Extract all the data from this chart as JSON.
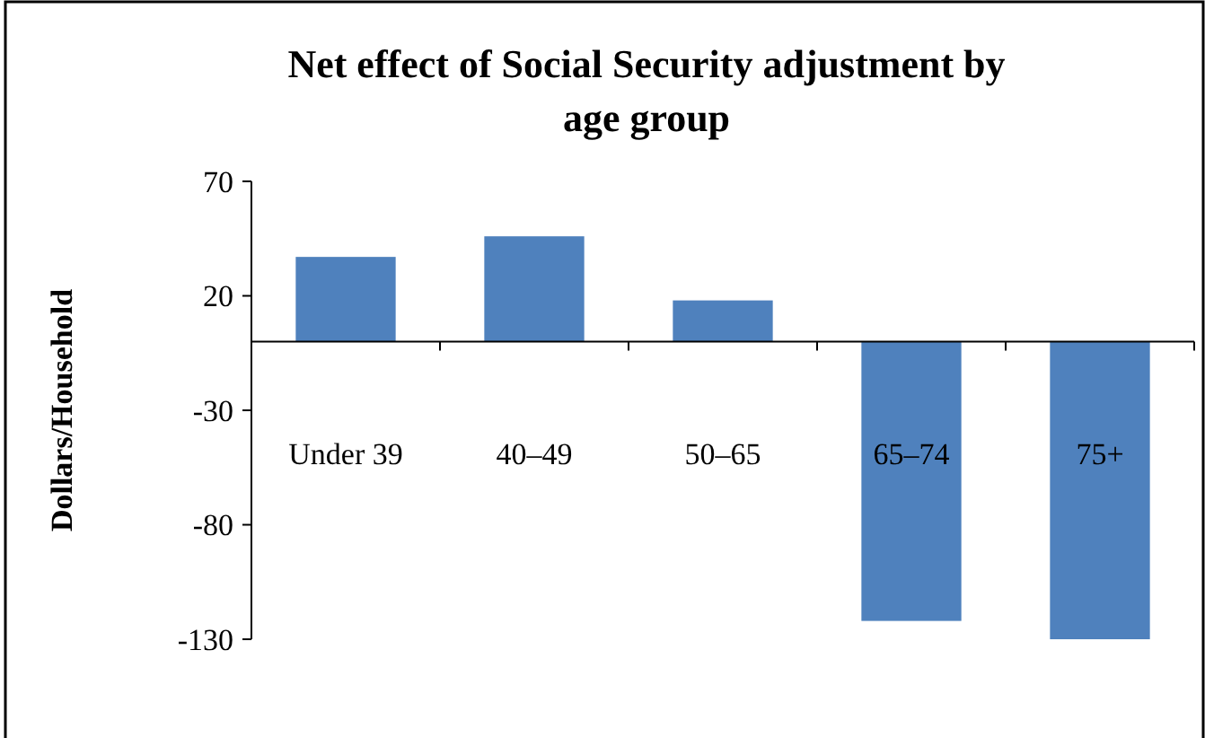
{
  "chart_data": {
    "type": "bar",
    "title": "Net effect of Social Security adjustment by age group",
    "ylabel": "Dollars/Household",
    "categories": [
      "Under 39",
      "40–49",
      "50–65",
      "65–74",
      "75+"
    ],
    "values": [
      37,
      46,
      18,
      -122,
      -130
    ],
    "color": "#4f81bd",
    "ylim": [
      -130,
      70
    ],
    "yticks": [
      -130,
      -80,
      -30,
      20,
      70
    ],
    "grid": false
  }
}
